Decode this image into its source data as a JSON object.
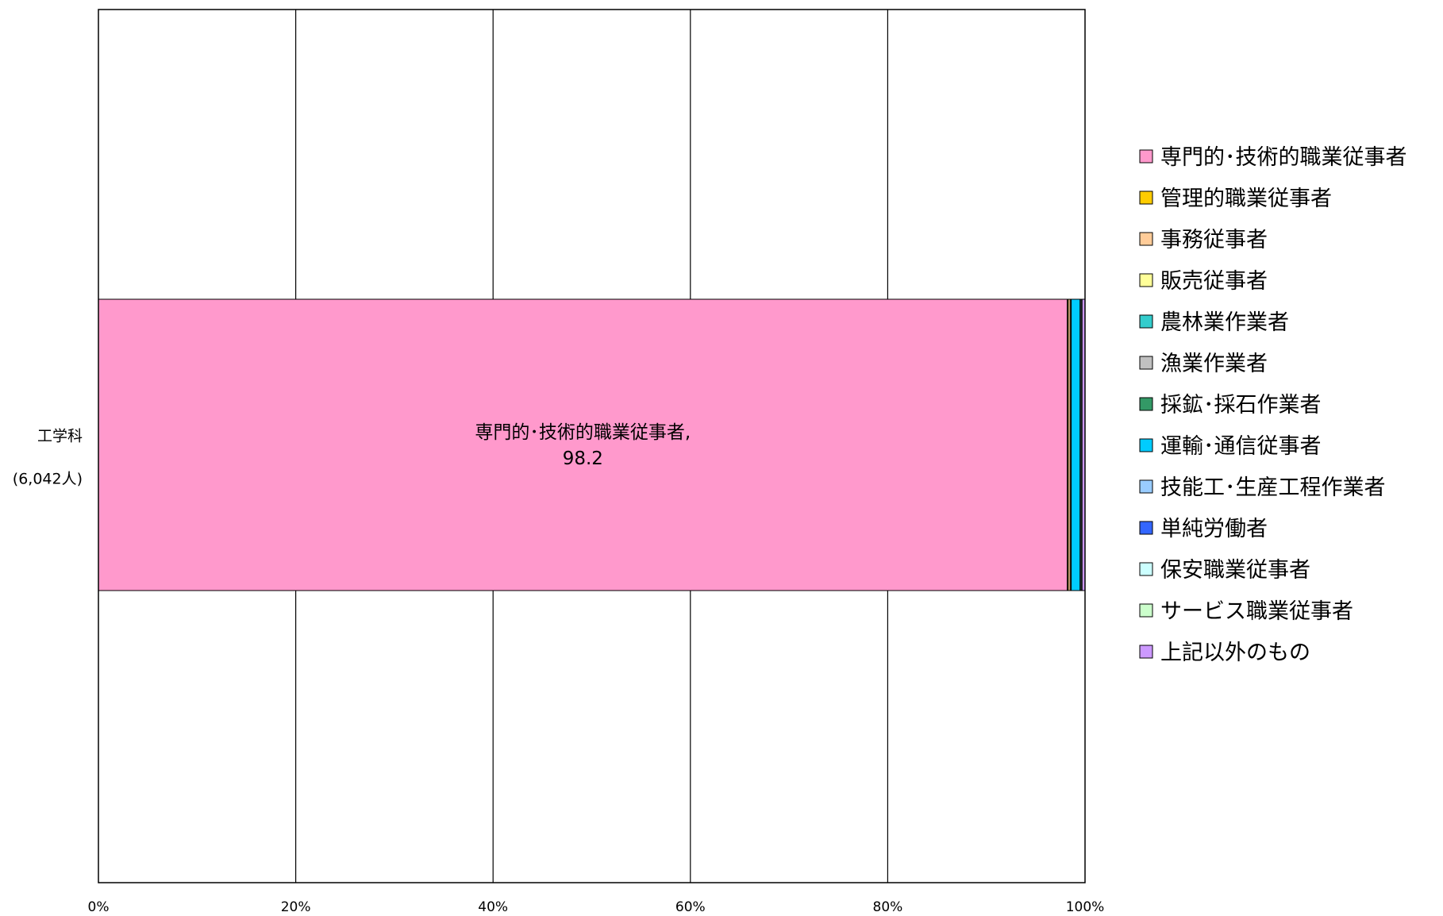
{
  "chart_data": {
    "type": "bar",
    "orientation": "horizontal",
    "stacked": true,
    "percent": true,
    "categories": [
      "工学科",
      "(6,042人)"
    ],
    "category_lines": [
      "工学科",
      "(6,042人)"
    ],
    "x_ticks": [
      "0%",
      "20%",
      "40%",
      "60%",
      "80%",
      "100%"
    ],
    "xlim": [
      0,
      100
    ],
    "grid": true,
    "legend_position": "right",
    "series": [
      {
        "name": "専門的･技術的職業従事者",
        "value": 98.2,
        "color": "#FF99CC"
      },
      {
        "name": "管理的職業従事者",
        "value": 0.1,
        "color": "#FFCC00"
      },
      {
        "name": "事務従事者",
        "value": 0.2,
        "color": "#FFCC99"
      },
      {
        "name": "販売従事者",
        "value": 0.1,
        "color": "#FFFF99"
      },
      {
        "name": "農林業作業者",
        "value": 0.0,
        "color": "#33CCCC"
      },
      {
        "name": "漁業作業者",
        "value": 0.0,
        "color": "#C0C0C0"
      },
      {
        "name": "採鉱･採石作業者",
        "value": 0.0,
        "color": "#339966"
      },
      {
        "name": "運輸･通信従事者",
        "value": 0.9,
        "color": "#00CCFF"
      },
      {
        "name": "技能工･生産工程作業者",
        "value": 0.1,
        "color": "#99CCFF"
      },
      {
        "name": "単純労働者",
        "value": 0.0,
        "color": "#3366FF"
      },
      {
        "name": "保安職業従事者",
        "value": 0.0,
        "color": "#CCFFFF"
      },
      {
        "name": "サービス職業従事者",
        "value": 0.1,
        "color": "#CCFFCC"
      },
      {
        "name": "上記以外のもの",
        "value": 0.3,
        "color": "#CC99FF"
      }
    ],
    "data_labels": [
      {
        "series_index": 0,
        "lines": [
          "専門的･技術的職業従事者,",
          "98.2"
        ]
      }
    ]
  }
}
